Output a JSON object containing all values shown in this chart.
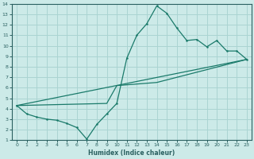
{
  "xlabel": "Humidex (Indice chaleur)",
  "xlim": [
    -0.5,
    23.5
  ],
  "ylim": [
    1,
    14
  ],
  "xticks": [
    0,
    1,
    2,
    3,
    4,
    5,
    6,
    7,
    8,
    9,
    10,
    11,
    12,
    13,
    14,
    15,
    16,
    17,
    18,
    19,
    20,
    21,
    22,
    23
  ],
  "yticks": [
    1,
    2,
    3,
    4,
    5,
    6,
    7,
    8,
    9,
    10,
    11,
    12,
    13,
    14
  ],
  "bg_color": "#cceae8",
  "grid_color": "#aad4d2",
  "line_color": "#1a7a6a",
  "spine_color": "#2a6060",
  "curve1_x": [
    0,
    1,
    2,
    3,
    4,
    5,
    6,
    7,
    8,
    9,
    10,
    11,
    12,
    13,
    14,
    15,
    16,
    17,
    18,
    19,
    20,
    21,
    22,
    23
  ],
  "curve1_y": [
    4.3,
    3.5,
    3.2,
    3.0,
    2.9,
    2.6,
    2.2,
    1.1,
    2.5,
    3.5,
    4.5,
    8.8,
    11.0,
    12.1,
    13.8,
    13.1,
    11.7,
    10.5,
    10.6,
    9.9,
    10.5,
    9.5,
    9.5,
    8.7
  ],
  "curve2_x": [
    0,
    23
  ],
  "curve2_y": [
    4.3,
    8.7
  ],
  "curve3_x": [
    0,
    9,
    10,
    14,
    23
  ],
  "curve3_y": [
    4.3,
    4.5,
    6.2,
    6.5,
    8.7
  ]
}
